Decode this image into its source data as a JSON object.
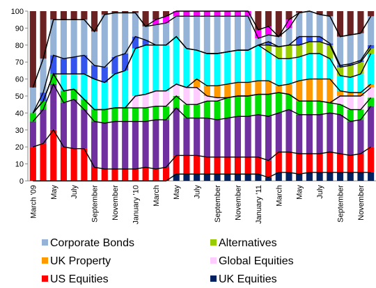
{
  "chart_data": {
    "type": "stacked_bar",
    "categories": [
      "March '09",
      null,
      "May",
      null,
      "July",
      null,
      "September",
      null,
      "November",
      null,
      "January '10",
      null,
      "March",
      null,
      "May",
      null,
      "July",
      null,
      "September",
      null,
      "November",
      null,
      "January '11",
      null,
      "March",
      null,
      "May",
      null,
      "July",
      null,
      "September",
      null,
      "November",
      null
    ],
    "ylim": [
      0,
      100
    ],
    "yticks": [
      0,
      10,
      20,
      30,
      40,
      50,
      60,
      70,
      80,
      90,
      100
    ],
    "series": [
      {
        "name": "UK Equities",
        "color": "#002060",
        "values": [
          0,
          0,
          0,
          0,
          0,
          0,
          0,
          0,
          0,
          0,
          0,
          0,
          0,
          0,
          4,
          4,
          4,
          4,
          4,
          4,
          4,
          4,
          4,
          2,
          5,
          5,
          4,
          5,
          5,
          5,
          5,
          5,
          5,
          5
        ]
      },
      {
        "name": "US Equities",
        "color": "#ff0000",
        "values": [
          20,
          22,
          30,
          20,
          19,
          19,
          8,
          7,
          7,
          7,
          7,
          8,
          7,
          8,
          11,
          11,
          11,
          10,
          10,
          10,
          10,
          10,
          10,
          10,
          12,
          12,
          12,
          11,
          11,
          12,
          11,
          10,
          11,
          15
        ]
      },
      {
        "color": "#7030a0",
        "values": [
          15,
          20,
          27,
          26,
          29,
          23,
          27,
          27,
          28,
          28,
          28,
          27,
          29,
          28,
          28,
          22,
          22,
          23,
          22,
          23,
          24,
          24,
          25,
          26,
          23,
          25,
          23,
          23,
          23,
          23,
          23,
          20,
          20,
          24
        ]
      },
      {
        "color": "#00dd00",
        "values": [
          5,
          5,
          6,
          7,
          6,
          6,
          7,
          8,
          8,
          8,
          8,
          8,
          8,
          8,
          7,
          8,
          8,
          10,
          11,
          12,
          12,
          12,
          12,
          13,
          12,
          9,
          8,
          8,
          8,
          6,
          6,
          7,
          6,
          5
        ]
      },
      {
        "name": "Global Equities",
        "color": "#ffccff",
        "values": [
          0,
          0,
          0,
          0,
          0,
          0,
          0,
          0,
          0,
          0,
          7,
          8,
          9,
          9,
          7,
          10,
          10,
          3,
          2,
          0,
          0,
          0,
          0,
          0,
          0,
          0,
          0,
          0,
          0,
          0,
          5,
          8,
          8,
          6
        ]
      },
      {
        "name": "UK Property",
        "color": "#ff9900",
        "values": [
          0,
          0,
          0,
          0,
          0,
          0,
          0,
          0,
          0,
          0,
          0,
          0,
          0,
          0,
          0,
          0,
          5,
          6,
          7,
          8,
          8,
          8,
          8,
          8,
          4,
          6,
          12,
          13,
          13,
          14,
          3,
          2,
          2,
          2
        ]
      },
      {
        "color": "#00ffff",
        "values": [
          0,
          0,
          0,
          10,
          9,
          15,
          18,
          16,
          20,
          22,
          28,
          29,
          27,
          27,
          28,
          23,
          17,
          19,
          19,
          19,
          19,
          19,
          21,
          17,
          16,
          15,
          14,
          15,
          15,
          12,
          9,
          9,
          11,
          18
        ]
      },
      {
        "name": "Alternatives",
        "color": "#99cc00",
        "values": [
          0,
          0,
          0,
          0,
          0,
          0,
          0,
          0,
          0,
          0,
          0,
          0,
          0,
          0,
          0,
          0,
          0,
          0,
          0,
          0,
          0,
          0,
          0,
          4,
          7,
          8,
          7,
          7,
          7,
          8,
          5,
          7,
          7,
          3
        ]
      },
      {
        "color": "#3355ee",
        "values": [
          0,
          5,
          11,
          9,
          10,
          11,
          8,
          9,
          10,
          10,
          7,
          3,
          0,
          0,
          0,
          0,
          0,
          0,
          0,
          0,
          0,
          0,
          0,
          2,
          0,
          0,
          5,
          3,
          3,
          1,
          1,
          1,
          1,
          2
        ]
      },
      {
        "name": "Corporate Bonds",
        "color": "#95b3d7",
        "values": [
          15,
          20,
          21,
          23,
          22,
          21,
          20,
          31,
          26,
          24,
          14,
          8,
          12,
          13,
          12,
          19,
          20,
          22,
          22,
          21,
          20,
          20,
          4,
          4,
          6,
          10,
          14,
          15,
          13,
          16,
          17,
          17,
          16,
          17
        ]
      },
      {
        "color": "#ff00ff",
        "values": [
          0,
          0,
          0,
          0,
          0,
          0,
          0,
          0,
          0,
          0,
          0,
          0,
          3,
          4,
          3,
          3,
          3,
          3,
          3,
          3,
          3,
          3,
          5,
          5,
          0,
          5,
          0,
          0,
          0,
          0,
          0,
          0,
          0,
          0
        ]
      },
      {
        "color": "#6b2222",
        "values": [
          45,
          28,
          5,
          5,
          5,
          5,
          12,
          2,
          1,
          1,
          1,
          9,
          5,
          3,
          0,
          0,
          0,
          0,
          0,
          0,
          0,
          0,
          11,
          9,
          15,
          5,
          1,
          0,
          2,
          3,
          15,
          14,
          13,
          3
        ]
      }
    ]
  }
}
